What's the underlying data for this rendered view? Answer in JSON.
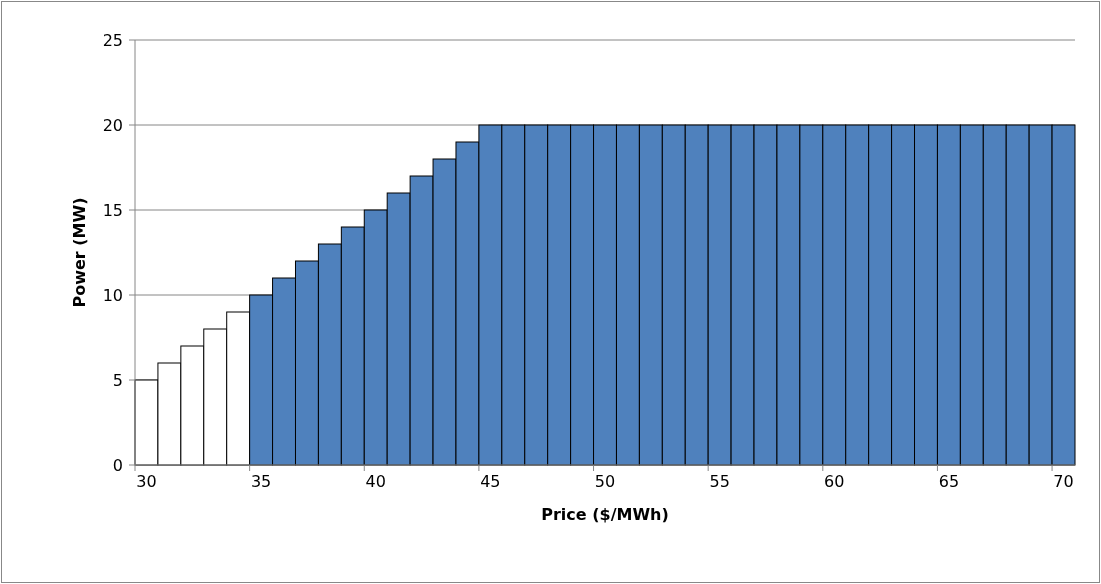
{
  "chart_data": {
    "type": "bar",
    "xlabel": "Price ($/MWh)",
    "ylabel": "Power (MW)",
    "categories": [
      "30",
      null,
      null,
      null,
      null,
      "35",
      null,
      null,
      null,
      null,
      "40",
      null,
      null,
      null,
      null,
      "45",
      null,
      null,
      null,
      null,
      "50",
      null,
      null,
      null,
      null,
      "55",
      null,
      null,
      null,
      null,
      "60",
      null,
      null,
      null,
      null,
      "65",
      null,
      null,
      null,
      null,
      "70"
    ],
    "values": [
      5,
      6,
      7,
      8,
      9,
      10,
      11,
      12,
      13,
      14,
      15,
      16,
      17,
      18,
      19,
      20,
      20,
      20,
      20,
      20,
      20,
      20,
      20,
      20,
      20,
      20,
      20,
      20,
      20,
      20,
      20,
      20,
      20,
      20,
      20,
      20,
      20,
      20,
      20,
      20,
      20
    ],
    "colors": [
      "#ffffff",
      "#ffffff",
      "#ffffff",
      "#ffffff",
      "#ffffff",
      "#4f81bd",
      "#4f81bd",
      "#4f81bd",
      "#4f81bd",
      "#4f81bd",
      "#4f81bd",
      "#4f81bd",
      "#4f81bd",
      "#4f81bd",
      "#4f81bd",
      "#4f81bd",
      "#4f81bd",
      "#4f81bd",
      "#4f81bd",
      "#4f81bd",
      "#4f81bd",
      "#4f81bd",
      "#4f81bd",
      "#4f81bd",
      "#4f81bd",
      "#4f81bd",
      "#4f81bd",
      "#4f81bd",
      "#4f81bd",
      "#4f81bd",
      "#4f81bd",
      "#4f81bd",
      "#4f81bd",
      "#4f81bd",
      "#4f81bd",
      "#4f81bd",
      "#4f81bd",
      "#4f81bd",
      "#4f81bd",
      "#4f81bd",
      "#4f81bd"
    ],
    "ylim": [
      0,
      25
    ],
    "yticks": [
      0,
      5,
      10,
      15,
      20,
      25
    ],
    "grid": "y"
  }
}
